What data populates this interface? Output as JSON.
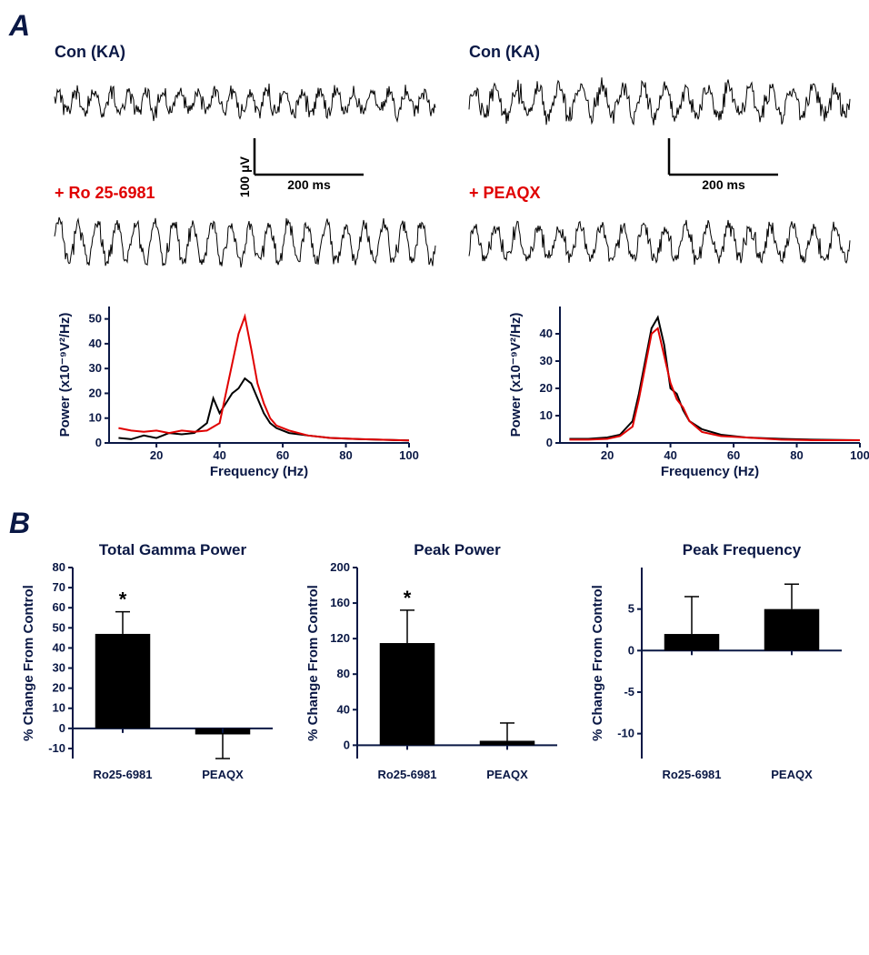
{
  "panelA": {
    "letter": "A",
    "left": {
      "topLabel": "Con (KA)",
      "bottomLabel": "+ Ro 25-6981",
      "scalebar": {
        "y_label": "100 μV",
        "x_label": "200 ms"
      }
    },
    "right": {
      "topLabel": "Con (KA)",
      "bottomLabel": "+ PEAQX",
      "scalebar": {
        "y_label": "",
        "x_label": "200 ms"
      }
    },
    "spectrumLeft": {
      "xlabel": "Frequency (Hz)",
      "ylabel": "Power (x10⁻⁹V²/Hz)",
      "xlim": [
        5,
        100
      ],
      "ylim": [
        0,
        55
      ],
      "xticks": [
        20,
        40,
        60,
        80,
        100
      ],
      "yticks": [
        0,
        10,
        20,
        30,
        40,
        50
      ],
      "series": [
        {
          "color": "#000000",
          "data": [
            [
              8,
              2
            ],
            [
              12,
              1.5
            ],
            [
              16,
              3
            ],
            [
              20,
              2
            ],
            [
              24,
              4
            ],
            [
              28,
              3.5
            ],
            [
              32,
              4
            ],
            [
              36,
              8
            ],
            [
              38,
              18
            ],
            [
              40,
              12
            ],
            [
              42,
              16
            ],
            [
              44,
              20
            ],
            [
              46,
              22
            ],
            [
              48,
              26
            ],
            [
              50,
              24
            ],
            [
              52,
              18
            ],
            [
              54,
              12
            ],
            [
              56,
              8
            ],
            [
              58,
              6
            ],
            [
              62,
              4
            ],
            [
              68,
              3
            ],
            [
              75,
              2
            ],
            [
              85,
              1.5
            ],
            [
              100,
              1
            ]
          ]
        },
        {
          "color": "#e00000",
          "data": [
            [
              8,
              6
            ],
            [
              12,
              5
            ],
            [
              16,
              4.5
            ],
            [
              20,
              5
            ],
            [
              24,
              4
            ],
            [
              28,
              5
            ],
            [
              32,
              4.5
            ],
            [
              36,
              5
            ],
            [
              40,
              8
            ],
            [
              42,
              20
            ],
            [
              44,
              32
            ],
            [
              46,
              44
            ],
            [
              48,
              51
            ],
            [
              50,
              38
            ],
            [
              52,
              24
            ],
            [
              54,
              16
            ],
            [
              56,
              10
            ],
            [
              58,
              7
            ],
            [
              62,
              5
            ],
            [
              68,
              3
            ],
            [
              75,
              2
            ],
            [
              85,
              1.5
            ],
            [
              100,
              1
            ]
          ]
        }
      ]
    },
    "spectrumRight": {
      "xlabel": "Frequency (Hz)",
      "ylabel": "Power (x10⁻⁹V²/Hz)",
      "xlim": [
        5,
        100
      ],
      "ylim": [
        0,
        50
      ],
      "xticks": [
        20,
        40,
        60,
        80,
        100
      ],
      "yticks": [
        0,
        10,
        20,
        30,
        40
      ],
      "series": [
        {
          "color": "#000000",
          "data": [
            [
              8,
              1.5
            ],
            [
              14,
              1.5
            ],
            [
              20,
              2
            ],
            [
              24,
              3
            ],
            [
              28,
              8
            ],
            [
              30,
              18
            ],
            [
              32,
              30
            ],
            [
              34,
              42
            ],
            [
              36,
              46
            ],
            [
              38,
              36
            ],
            [
              40,
              20
            ],
            [
              42,
              18
            ],
            [
              44,
              12
            ],
            [
              46,
              8
            ],
            [
              50,
              5
            ],
            [
              56,
              3
            ],
            [
              64,
              2
            ],
            [
              75,
              1.5
            ],
            [
              85,
              1.2
            ],
            [
              100,
              1
            ]
          ]
        },
        {
          "color": "#e00000",
          "data": [
            [
              8,
              1.2
            ],
            [
              14,
              1.2
            ],
            [
              20,
              1.5
            ],
            [
              24,
              2.5
            ],
            [
              28,
              6
            ],
            [
              30,
              16
            ],
            [
              32,
              28
            ],
            [
              34,
              40
            ],
            [
              36,
              42
            ],
            [
              38,
              32
            ],
            [
              40,
              22
            ],
            [
              42,
              16
            ],
            [
              44,
              13
            ],
            [
              46,
              8
            ],
            [
              50,
              4
            ],
            [
              56,
              2.5
            ],
            [
              64,
              2
            ],
            [
              75,
              1.2
            ],
            [
              85,
              1
            ],
            [
              100,
              1
            ]
          ]
        }
      ]
    }
  },
  "panelB": {
    "letter": "B",
    "ylabel": "% Change From Control",
    "charts": [
      {
        "title": "Total Gamma Power",
        "ylim": [
          -15,
          80
        ],
        "yticks": [
          -10,
          0,
          10,
          20,
          30,
          40,
          50,
          60,
          70,
          80
        ],
        "categories": [
          "Ro25-6981",
          "PEAQX"
        ],
        "values": [
          47,
          -3
        ],
        "errors": [
          11,
          12
        ],
        "sig": [
          "*",
          ""
        ],
        "bar_color": "#000000"
      },
      {
        "title": "Peak Power",
        "ylim": [
          -15,
          200
        ],
        "yticks": [
          0,
          40,
          80,
          120,
          160,
          200
        ],
        "categories": [
          "Ro25-6981",
          "PEAQX"
        ],
        "values": [
          115,
          5
        ],
        "errors": [
          37,
          20
        ],
        "sig": [
          "*",
          ""
        ],
        "bar_color": "#000000"
      },
      {
        "title": "Peak Frequency",
        "ylim": [
          -13,
          10
        ],
        "yticks": [
          -10,
          -5,
          0,
          5
        ],
        "categories": [
          "Ro25-6981",
          "PEAQX"
        ],
        "values": [
          2,
          5
        ],
        "errors": [
          4.5,
          3
        ],
        "sig": [
          "",
          ""
        ],
        "bar_color": "#000000"
      }
    ]
  },
  "colors": {
    "axis": "#0a1845",
    "bg": "#ffffff"
  }
}
